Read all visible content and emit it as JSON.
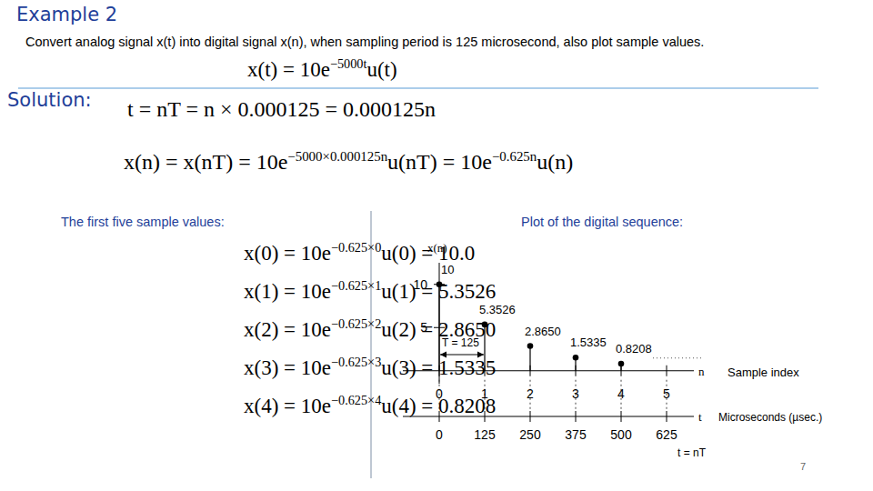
{
  "header": {
    "title": "Example 2",
    "task": "Convert analog signal x(t) into digital signal x(n), when sampling period is 125 microsecond, also plot sample values."
  },
  "given": [
    {
      "t": "x(t) = 10e"
    },
    {
      "sup": "−5000t"
    },
    {
      "t": "u(t)"
    }
  ],
  "solution": {
    "label": "Solution:",
    "equations": [
      [
        {
          "t": "t = nT = n × 0.000125 = 0.000125n"
        }
      ],
      [
        {
          "t": "x(n) = x(nT) = 10e"
        },
        {
          "sup": "−5000×0.000125n"
        },
        {
          "t": "u(nT) = 10e"
        },
        {
          "sup": "−0.625n"
        },
        {
          "t": "u(n)"
        }
      ]
    ]
  },
  "samples": {
    "heading": "The first five sample values:",
    "lines": [
      [
        {
          "t": "x(0) = 10e"
        },
        {
          "sup": "−0.625×0"
        },
        {
          "t": "u(0) = 10.0"
        }
      ],
      [
        {
          "t": "x(1) = 10e"
        },
        {
          "sup": "−0.625×1"
        },
        {
          "t": "u(1) = 5.3526"
        }
      ],
      [
        {
          "t": "x(2) = 10e"
        },
        {
          "sup": "−0.625×2"
        },
        {
          "t": "u(2) = 2.8650"
        }
      ],
      [
        {
          "t": "x(3) = 10e"
        },
        {
          "sup": "−0.625×3"
        },
        {
          "t": "u(3) = 1.5335"
        }
      ],
      [
        {
          "t": "x(4) = 10e"
        },
        {
          "sup": "−0.625×4"
        },
        {
          "t": "u(4) = 0.8208"
        }
      ]
    ]
  },
  "plot": {
    "heading": "Plot of the digital sequence:"
  },
  "page_number": "7",
  "chart_data": {
    "type": "stem",
    "ylabel": "x(n)",
    "xlabel": "n",
    "xlabel_note": "Sample index",
    "x2label": "t",
    "x2label_note": "Microseconds (µsec.)",
    "x2_formula": "t = nT",
    "x": [
      0,
      1,
      2,
      3,
      4
    ],
    "values": [
      10,
      5.3526,
      2.865,
      1.5335,
      0.8208
    ],
    "value_labels": [
      "10",
      "5.3526",
      "2.8650",
      "1.5335",
      "0.8208"
    ],
    "data_labels": true,
    "xlim": [
      -0.8,
      5.6
    ],
    "xticks": [
      0,
      1,
      2,
      3,
      4,
      5
    ],
    "x2lim": [
      -100,
      700
    ],
    "x2ticks": [
      0,
      125,
      250,
      375,
      500,
      625
    ],
    "ylim": [
      -1.5,
      12.5
    ],
    "yticks": [
      5,
      10
    ],
    "annotations": [
      {
        "text": "T = 125",
        "x": [
          0,
          1
        ]
      }
    ],
    "color": "#000000",
    "marker": "dot",
    "grid": false
  }
}
